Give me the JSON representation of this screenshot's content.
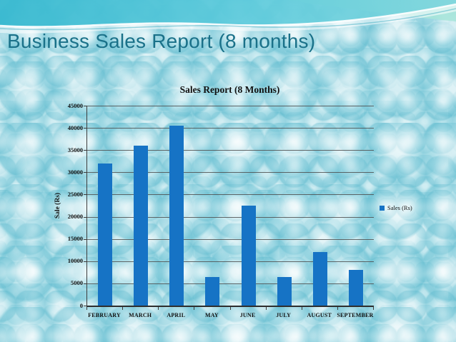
{
  "slide": {
    "title": "Business Sales Report (8 months)"
  },
  "chart": {
    "title": "Sales Report (8 Months)",
    "y_axis_title": "Sale (Rs)",
    "legend_label": "Sales (Rs)"
  },
  "chart_data": {
    "type": "bar",
    "title": "Sales Report (8 Months)",
    "categories": [
      "FEBRUARY",
      "MARCH",
      "APRIL",
      "MAY",
      "JUNE",
      "JULY",
      "AUGUST",
      "SEPTEMBER"
    ],
    "series": [
      {
        "name": "Sales (Rs)",
        "values": [
          32000,
          36000,
          40500,
          6500,
          22500,
          6500,
          12000,
          8000
        ]
      }
    ],
    "xlabel": "",
    "ylabel": "Sale (Rs)",
    "ylim": [
      0,
      45000
    ],
    "ytick_interval": 5000,
    "yticks": [
      0,
      5000,
      10000,
      15000,
      20000,
      25000,
      30000,
      35000,
      40000,
      45000
    ],
    "grid": true,
    "legend_position": "right",
    "colors": {
      "bar": "#1673c5",
      "gridline": "#4f4f4f",
      "axis": "#3c3c3c",
      "text": "#101010"
    }
  },
  "theme": {
    "slide_title_color": "#1a7189",
    "background_base": "#b7e3eb",
    "band_cyan": "#3bbad1",
    "band_mint": "#a9e5da"
  }
}
